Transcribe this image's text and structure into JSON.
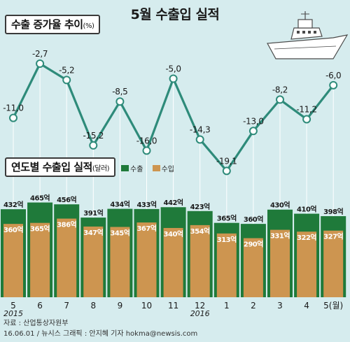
{
  "title": "5월 수출입 실적",
  "rate_label": "수출 증가율 추이",
  "rate_unit": "(%)",
  "volume_label": "연도별 수출입 실적",
  "volume_unit": "(달러)",
  "legend": {
    "export": "수출",
    "import": "수입"
  },
  "source": "자료 : 산업통상자원부",
  "credit": "16.06.01 / 뉴시스 그래픽 : 안지혜 기자 hokma@newsis.com",
  "colors": {
    "background": "#d6ecee",
    "line": "#2e8b7a",
    "export_bar": "#1f7a3a",
    "import_bar": "#cd9550"
  },
  "chart_data": [
    {
      "type": "line",
      "title": "수출 증가율 추이",
      "unit": "%",
      "categories": [
        "5",
        "6",
        "7",
        "8",
        "9",
        "10",
        "11",
        "12",
        "1",
        "2",
        "3",
        "4",
        "5(월)"
      ],
      "values": [
        -11.0,
        -2.7,
        -5.2,
        -15.2,
        -8.5,
        -16.0,
        -5.0,
        -14.3,
        -19.1,
        -13.0,
        -8.2,
        -11.2,
        -6.0
      ],
      "value_labels": [
        "-11,0",
        "-2,7",
        "-5,2",
        "-15,2",
        "-8,5",
        "-16,0",
        "-5,0",
        "-14,3",
        "-19,1",
        "-13,0",
        "-8,2",
        "-11,2",
        "-6,0"
      ]
    },
    {
      "type": "bar",
      "title": "연도별 수출입 실적",
      "unit": "달러",
      "categories": [
        "5",
        "6",
        "7",
        "8",
        "9",
        "10",
        "11",
        "12",
        "1",
        "2",
        "3",
        "4",
        "5(월)"
      ],
      "year_labels": [
        {
          "text": "2015",
          "index": 0
        },
        {
          "text": "2016",
          "index": 7
        }
      ],
      "series": [
        {
          "name": "수출",
          "values": [
            432,
            465,
            456,
            391,
            434,
            433,
            442,
            423,
            365,
            360,
            430,
            410,
            398
          ],
          "labels": [
            "432억",
            "465억",
            "456억",
            "391억",
            "434억",
            "433억",
            "442억",
            "423억",
            "365억",
            "360억",
            "430억",
            "410억",
            "398억"
          ]
        },
        {
          "name": "수입",
          "values": [
            360,
            365,
            386,
            347,
            345,
            367,
            340,
            354,
            313,
            290,
            331,
            322,
            327
          ],
          "labels": [
            "360억",
            "365억",
            "386억",
            "347억",
            "345억",
            "367억",
            "340억",
            "354억",
            "313억",
            "290억",
            "331억",
            "322억",
            "327억"
          ]
        }
      ]
    }
  ]
}
